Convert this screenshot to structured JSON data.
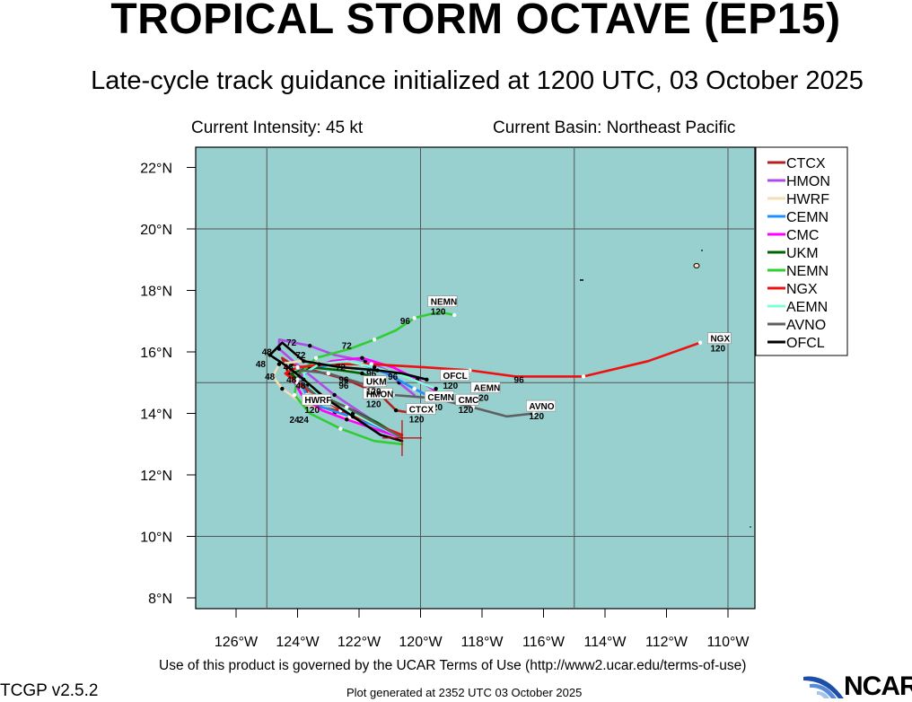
{
  "title": "TROPICAL STORM OCTAVE (EP15)",
  "subtitle": "Late-cycle track guidance initialized at 1200 UTC, 03 October 2025",
  "current_intensity": "Current Intensity: 45 kt",
  "current_basin": "Current Basin: Northeast Pacific",
  "footer": {
    "terms": "Use of this product is governed by the UCAR Terms of Use (http://www2.ucar.edu/terms-of-use)",
    "version": "TCGP v2.5.2",
    "generated": "Plot generated at 2352 UTC   03 October 2025",
    "logo_text": "NCAR"
  },
  "map": {
    "ocean_color": "#98cfcf",
    "x_ticks": [
      "126°W",
      "124°W",
      "122°W",
      "120°W",
      "118°W",
      "116°W",
      "114°W",
      "112°W",
      "110°W"
    ],
    "y_ticks": [
      "8°N",
      "10°N",
      "12°N",
      "14°N",
      "16°N",
      "18°N",
      "20°N",
      "22°N"
    ]
  },
  "legend": [
    {
      "name": "CTCX",
      "color": "#b22222"
    },
    {
      "name": "HMON",
      "color": "#b04be8"
    },
    {
      "name": "HWRF",
      "color": "#f5deb3"
    },
    {
      "name": "CEMN",
      "color": "#1e90ff"
    },
    {
      "name": "CMC",
      "color": "#ff00ff"
    },
    {
      "name": "UKM",
      "color": "#006400"
    },
    {
      "name": "NEMN",
      "color": "#32cd32"
    },
    {
      "name": "NGX",
      "color": "#ee1111"
    },
    {
      "name": "AEMN",
      "color": "#7fffd4"
    },
    {
      "name": "AVNO",
      "color": "#606060"
    },
    {
      "name": "OFCL",
      "color": "#000000"
    }
  ],
  "chart_data": {
    "type": "map",
    "initial_position": {
      "lon": -120.6,
      "lat": 13.2
    },
    "tracks": [
      {
        "name": "CTCX",
        "color": "#b22222",
        "end_label": "CTCX",
        "end_hour": "120",
        "points": [
          [
            -120.6,
            13.2
          ],
          [
            -121.4,
            13.6
          ],
          [
            -122.2,
            14.0
          ],
          [
            -123.3,
            14.2
          ],
          [
            -123.7,
            14.5
          ],
          [
            -123.7,
            14.8
          ],
          [
            -124.3,
            15.3
          ],
          [
            -124.5,
            15.8
          ],
          [
            -124.2,
            15.6
          ],
          [
            -123.5,
            15.4
          ],
          [
            -122.4,
            15.1
          ],
          [
            -121.3,
            14.6
          ],
          [
            -120.8,
            14.1
          ],
          [
            -120.2,
            14.0
          ]
        ]
      },
      {
        "name": "HMON",
        "color": "#b04be8",
        "end_label": "HMON",
        "end_hour": "120",
        "points": [
          [
            -120.6,
            13.2
          ],
          [
            -121.6,
            13.8
          ],
          [
            -122.8,
            14.6
          ],
          [
            -123.8,
            15.4
          ],
          [
            -124.6,
            16.1
          ],
          [
            -124.6,
            16.4
          ],
          [
            -123.6,
            16.2
          ],
          [
            -122.8,
            15.9
          ],
          [
            -121.8,
            15.7
          ],
          [
            -121.1,
            15.4
          ],
          [
            -120.7,
            15.0
          ],
          [
            -120.2,
            14.6
          ]
        ]
      },
      {
        "name": "HWRF",
        "color": "#f5deb3",
        "end_label": "HWRF",
        "end_hour": "120",
        "points": [
          [
            -120.6,
            13.2
          ],
          [
            -121.6,
            13.6
          ],
          [
            -122.8,
            14.0
          ],
          [
            -123.8,
            14.3
          ],
          [
            -124.5,
            14.8
          ],
          [
            -124.8,
            15.2
          ],
          [
            -124.6,
            15.6
          ],
          [
            -123.9,
            15.7
          ],
          [
            -123.0,
            15.6
          ],
          [
            -122.3,
            15.4
          ]
        ]
      },
      {
        "name": "CEMN",
        "color": "#1e90ff",
        "end_label": "CEMN",
        "end_hour": "120",
        "points": [
          [
            -120.6,
            13.2
          ],
          [
            -121.5,
            13.6
          ],
          [
            -122.3,
            13.9
          ],
          [
            -123.2,
            14.2
          ],
          [
            -123.7,
            14.6
          ],
          [
            -123.9,
            15.0
          ],
          [
            -123.7,
            15.4
          ],
          [
            -122.9,
            15.6
          ],
          [
            -121.9,
            15.6
          ],
          [
            -121.1,
            15.3
          ],
          [
            -120.2,
            14.8
          ],
          [
            -119.6,
            14.5
          ]
        ]
      },
      {
        "name": "CMC",
        "color": "#ff00ff",
        "end_label": "CMC",
        "end_hour": "120",
        "points": [
          [
            -120.6,
            13.2
          ],
          [
            -121.5,
            13.5
          ],
          [
            -122.4,
            13.8
          ],
          [
            -123.2,
            14.1
          ],
          [
            -123.8,
            14.5
          ],
          [
            -124.1,
            15.0
          ],
          [
            -123.7,
            15.4
          ],
          [
            -122.9,
            15.7
          ],
          [
            -121.9,
            15.8
          ],
          [
            -120.9,
            15.5
          ],
          [
            -120.1,
            15.1
          ],
          [
            -119.3,
            14.6
          ]
        ]
      },
      {
        "name": "UKM",
        "color": "#006400",
        "end_label": "UKM",
        "end_hour": "120",
        "points": [
          [
            -120.6,
            13.2
          ],
          [
            -121.4,
            13.7
          ],
          [
            -122.4,
            14.2
          ],
          [
            -123.3,
            14.6
          ],
          [
            -123.9,
            15.0
          ],
          [
            -124.2,
            15.3
          ],
          [
            -123.6,
            15.5
          ],
          [
            -122.6,
            15.4
          ],
          [
            -121.9,
            15.3
          ],
          [
            -121.4,
            15.1
          ]
        ]
      },
      {
        "name": "NEMN",
        "color": "#32cd32",
        "end_label": "NEMN",
        "end_hour": "120",
        "points": [
          [
            -120.6,
            13.0
          ],
          [
            -121.5,
            13.1
          ],
          [
            -122.6,
            13.5
          ],
          [
            -123.6,
            14.0
          ],
          [
            -124.1,
            14.6
          ],
          [
            -124.0,
            15.2
          ],
          [
            -123.4,
            15.8
          ],
          [
            -122.3,
            16.1
          ],
          [
            -121.5,
            16.4
          ],
          [
            -120.8,
            16.7
          ],
          [
            -120.2,
            17.1
          ],
          [
            -119.4,
            17.3
          ],
          [
            -118.9,
            17.2
          ]
        ]
      },
      {
        "name": "NGX",
        "color": "#ee1111",
        "end_label": "NGX",
        "end_hour": "120",
        "points": [
          [
            -120.6,
            13.3
          ],
          [
            -121.6,
            13.7
          ],
          [
            -122.6,
            14.1
          ],
          [
            -123.4,
            14.6
          ],
          [
            -124.0,
            15.0
          ],
          [
            -124.4,
            15.3
          ],
          [
            -124.0,
            15.5
          ],
          [
            -123.0,
            15.6
          ],
          [
            -121.6,
            15.6
          ],
          [
            -119.9,
            15.5
          ],
          [
            -118.4,
            15.4
          ],
          [
            -116.9,
            15.2
          ],
          [
            -114.7,
            15.2
          ],
          [
            -112.6,
            15.7
          ],
          [
            -110.9,
            16.3
          ]
        ]
      },
      {
        "name": "AEMN",
        "color": "#7fffd4",
        "end_label": "AEMN",
        "end_hour": "120",
        "points": [
          [
            -120.6,
            13.2
          ],
          [
            -121.4,
            13.6
          ],
          [
            -122.2,
            14.0
          ],
          [
            -123.1,
            14.4
          ],
          [
            -123.7,
            14.9
          ],
          [
            -123.8,
            15.3
          ],
          [
            -123.3,
            15.6
          ],
          [
            -122.4,
            15.7
          ],
          [
            -121.5,
            15.5
          ],
          [
            -120.5,
            15.2
          ],
          [
            -119.5,
            14.8
          ],
          [
            -118.8,
            14.6
          ]
        ]
      },
      {
        "name": "AVNO",
        "color": "#606060",
        "end_label": "AVNO",
        "end_hour": "120",
        "points": [
          [
            -120.6,
            13.2
          ],
          [
            -121.5,
            13.7
          ],
          [
            -122.4,
            14.2
          ],
          [
            -123.4,
            14.6
          ],
          [
            -124.0,
            15.1
          ],
          [
            -123.9,
            15.4
          ],
          [
            -123.0,
            15.3
          ],
          [
            -122.0,
            15.0
          ],
          [
            -120.9,
            14.6
          ],
          [
            -119.6,
            14.5
          ],
          [
            -118.3,
            14.2
          ],
          [
            -117.2,
            13.9
          ],
          [
            -116.3,
            14.0
          ]
        ]
      },
      {
        "name": "OFCL",
        "color": "#000000",
        "end_label": "OFCL",
        "end_hour": "120",
        "points": [
          [
            -120.6,
            13.1
          ],
          [
            -121.3,
            13.3
          ],
          [
            -122.2,
            13.9
          ],
          [
            -123.1,
            14.5
          ],
          [
            -123.8,
            15.1
          ],
          [
            -124.3,
            15.5
          ],
          [
            -124.9,
            15.9
          ],
          [
            -124.5,
            16.3
          ],
          [
            -123.8,
            15.7
          ],
          [
            -122.6,
            15.5
          ],
          [
            -121.4,
            15.4
          ],
          [
            -120.6,
            15.3
          ],
          [
            -119.8,
            15.1
          ]
        ]
      }
    ],
    "hour_labels": [
      {
        "text": "96",
        "lon": -120.5,
        "lat": 16.9
      },
      {
        "text": "72",
        "lon": -122.4,
        "lat": 16.1
      },
      {
        "text": "72",
        "lon": -124.2,
        "lat": 16.2
      },
      {
        "text": "72",
        "lon": -123.9,
        "lat": 15.8
      },
      {
        "text": "72",
        "lon": -122.6,
        "lat": 15.4
      },
      {
        "text": "96",
        "lon": -116.8,
        "lat": 15.0
      },
      {
        "text": "96",
        "lon": -119.6,
        "lat": 14.5
      },
      {
        "text": "96",
        "lon": -121.6,
        "lat": 15.2
      },
      {
        "text": "96",
        "lon": -122.5,
        "lat": 15.0
      },
      {
        "text": "96",
        "lon": -122.5,
        "lat": 14.8
      },
      {
        "text": "96",
        "lon": -120.9,
        "lat": 15.1
      },
      {
        "text": "48",
        "lon": -125.0,
        "lat": 15.9
      },
      {
        "text": "48",
        "lon": -125.2,
        "lat": 15.5
      },
      {
        "text": "48",
        "lon": -124.9,
        "lat": 15.1
      },
      {
        "text": "48",
        "lon": -124.3,
        "lat": 15.4
      },
      {
        "text": "48",
        "lon": -124.2,
        "lat": 15.0
      },
      {
        "text": "48",
        "lon": -123.9,
        "lat": 14.8
      },
      {
        "text": "24",
        "lon": -124.1,
        "lat": 13.7
      },
      {
        "text": "24",
        "lon": -123.8,
        "lat": 13.7
      }
    ],
    "end_labels": [
      {
        "text": "NEMN",
        "hour": "120",
        "lon": -119.7,
        "lat": 17.5
      },
      {
        "text": "NGX",
        "hour": "120",
        "lon": -110.6,
        "lat": 16.3
      },
      {
        "text": "OFCL",
        "hour": "120",
        "lon": -119.3,
        "lat": 15.1
      },
      {
        "text": "AEMN",
        "hour": "120",
        "lon": -118.3,
        "lat": 14.7
      },
      {
        "text": "CEMN",
        "hour": "120",
        "lon": -119.8,
        "lat": 14.4
      },
      {
        "text": "CMC",
        "hour": "120",
        "lon": -118.8,
        "lat": 14.3
      },
      {
        "text": "AVNO",
        "hour": "120",
        "lon": -116.5,
        "lat": 14.1
      },
      {
        "text": "HMON",
        "hour": "120",
        "lon": -121.8,
        "lat": 14.5
      },
      {
        "text": "UKM",
        "hour": "120",
        "lon": -121.8,
        "lat": 14.9
      },
      {
        "text": "CTCX",
        "hour": "120",
        "lon": -120.4,
        "lat": 14.0
      },
      {
        "text": "HWRF",
        "hour": "120",
        "lon": -123.8,
        "lat": 14.3
      }
    ]
  }
}
